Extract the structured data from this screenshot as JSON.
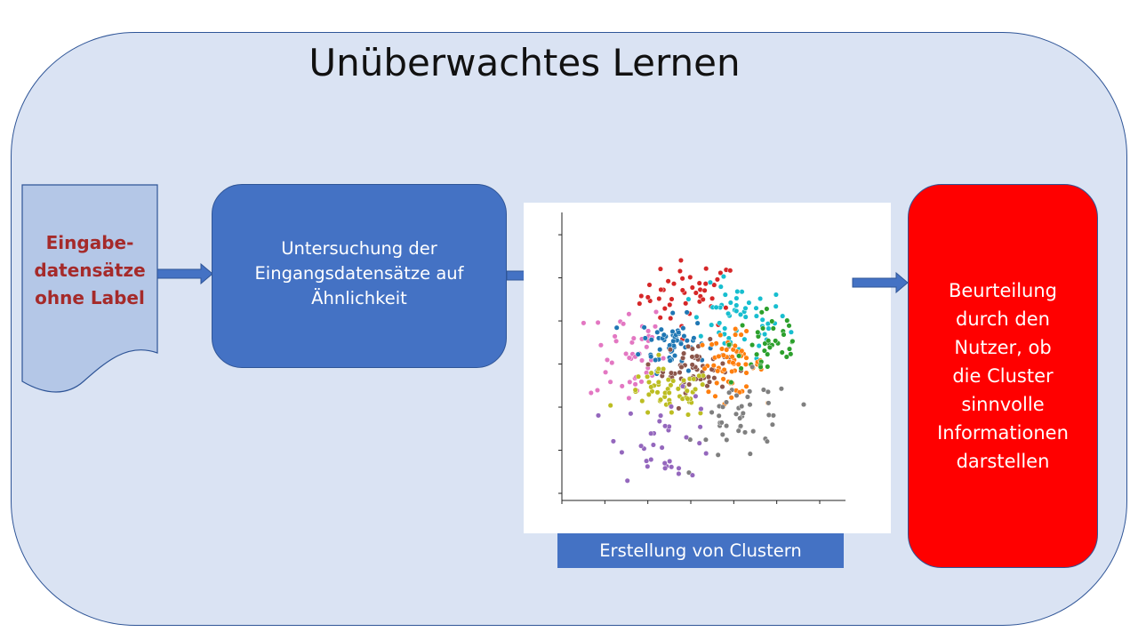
{
  "title": "Unüberwachtes Lernen",
  "input_doc": {
    "lines": [
      "Eingabe-",
      "datensätze",
      "ohne Label"
    ]
  },
  "process_box": {
    "lines": [
      "Untersuchung der",
      "Eingangsdatensätze auf",
      "Ähnlichkeit"
    ]
  },
  "cluster_caption": "Erstellung von Clustern",
  "evaluation_box": {
    "lines": [
      "Beurteilung",
      "durch den",
      "Nutzer, ob",
      "die Cluster",
      "sinnvolle",
      "Informationen",
      "darstellen"
    ]
  },
  "colors": {
    "panel": "#dae3f3",
    "accent_blue": "#4472c4",
    "border_blue": "#2f5597",
    "input_text": "#a52a2a",
    "evaluation_red": "#ff0000"
  },
  "chart_data": {
    "type": "scatter",
    "title": "",
    "xlabel": "",
    "ylabel": "",
    "grid": false,
    "legend": "none",
    "clusters": [
      {
        "name": "",
        "color": "#d62728",
        "center": [
          0.05,
          0.9
        ],
        "spread": [
          0.45,
          0.28
        ],
        "count": 45
      },
      {
        "name": "",
        "color": "#17becf",
        "center": [
          0.95,
          0.45
        ],
        "spread": [
          0.45,
          0.3
        ],
        "count": 55
      },
      {
        "name": "",
        "color": "#e377c2",
        "center": [
          -1.1,
          -0.05
        ],
        "spread": [
          0.35,
          0.45
        ],
        "count": 45
      },
      {
        "name": "",
        "color": "#1f77b4",
        "center": [
          -0.25,
          0.1
        ],
        "spread": [
          0.3,
          0.22
        ],
        "count": 60
      },
      {
        "name": "",
        "color": "#8c564b",
        "center": [
          0.15,
          -0.3
        ],
        "spread": [
          0.3,
          0.2
        ],
        "count": 60
      },
      {
        "name": "",
        "color": "#ff7f0e",
        "center": [
          0.8,
          -0.25
        ],
        "spread": [
          0.3,
          0.25
        ],
        "count": 60
      },
      {
        "name": "",
        "color": "#2ca02c",
        "center": [
          1.5,
          0.1
        ],
        "spread": [
          0.35,
          0.35
        ],
        "count": 40
      },
      {
        "name": "",
        "color": "#bcbd22",
        "center": [
          -0.35,
          -0.75
        ],
        "spread": [
          0.4,
          0.2
        ],
        "count": 55
      },
      {
        "name": "",
        "color": "#7f7f7f",
        "center": [
          1.05,
          -1.15
        ],
        "spread": [
          0.45,
          0.35
        ],
        "count": 45
      },
      {
        "name": "",
        "color": "#9467bd",
        "center": [
          -0.35,
          -1.45
        ],
        "spread": [
          0.45,
          0.35
        ],
        "count": 35
      }
    ],
    "xlim": [
      -2.3,
      2.9
    ],
    "ylim": [
      -2.5,
      2.2
    ]
  }
}
